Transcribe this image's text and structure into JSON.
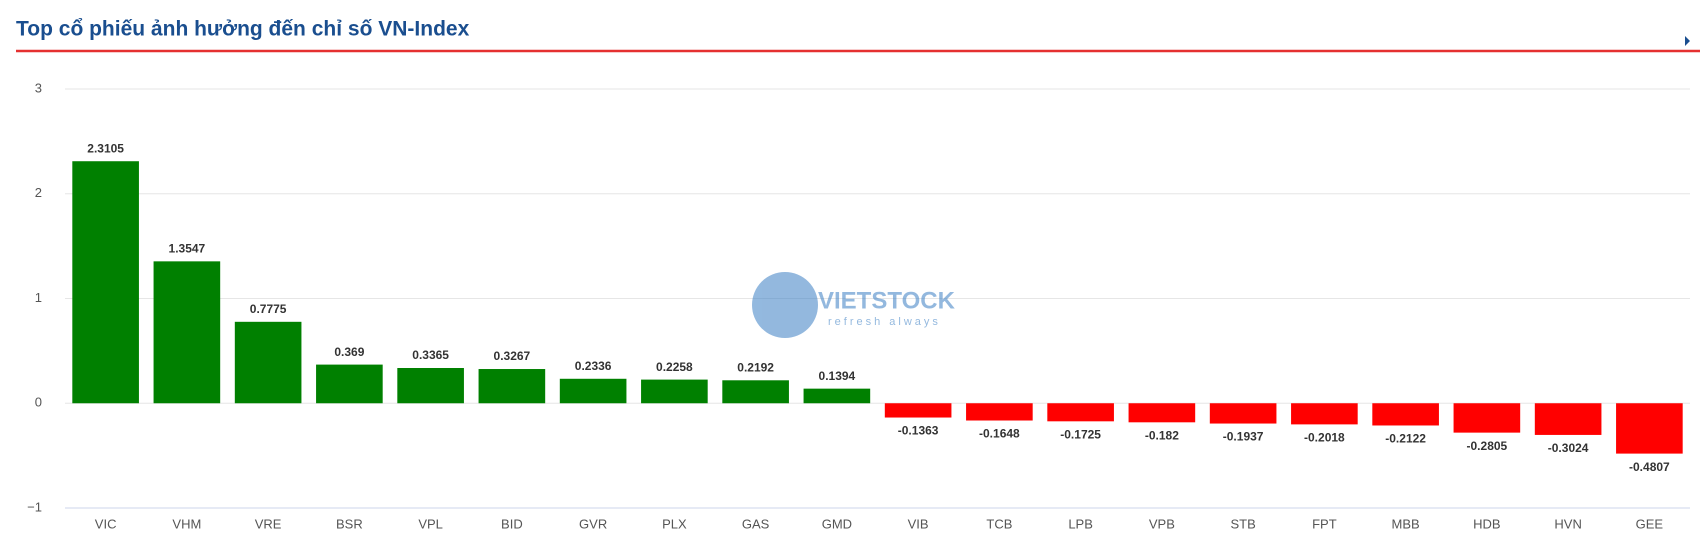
{
  "chart_data": {
    "type": "bar",
    "title": "Top cổ phiếu ảnh hưởng đến chỉ số VN-Index",
    "watermark": {
      "brand": "VIETSTOCK",
      "tagline": "refresh always"
    },
    "categories": [
      "VIC",
      "VHM",
      "VRE",
      "BSR",
      "VPL",
      "BID",
      "GVR",
      "PLX",
      "GAS",
      "GMD",
      "VIB",
      "TCB",
      "LPB",
      "VPB",
      "STB",
      "FPT",
      "MBB",
      "HDB",
      "HVN",
      "GEE"
    ],
    "values": [
      2.3105,
      1.3547,
      0.7775,
      0.369,
      0.3365,
      0.3267,
      0.2336,
      0.2258,
      0.2192,
      0.1394,
      -0.1363,
      -0.1648,
      -0.1725,
      -0.182,
      -0.1937,
      -0.2018,
      -0.2122,
      -0.2805,
      -0.3024,
      -0.4807
    ],
    "positive_color": "#008000",
    "negative_color": "#ff0000",
    "ylim": [
      -1,
      3
    ],
    "yticks": [
      {
        "value": -1,
        "label": "−1"
      },
      0,
      1,
      2,
      3
    ],
    "grid": true
  }
}
